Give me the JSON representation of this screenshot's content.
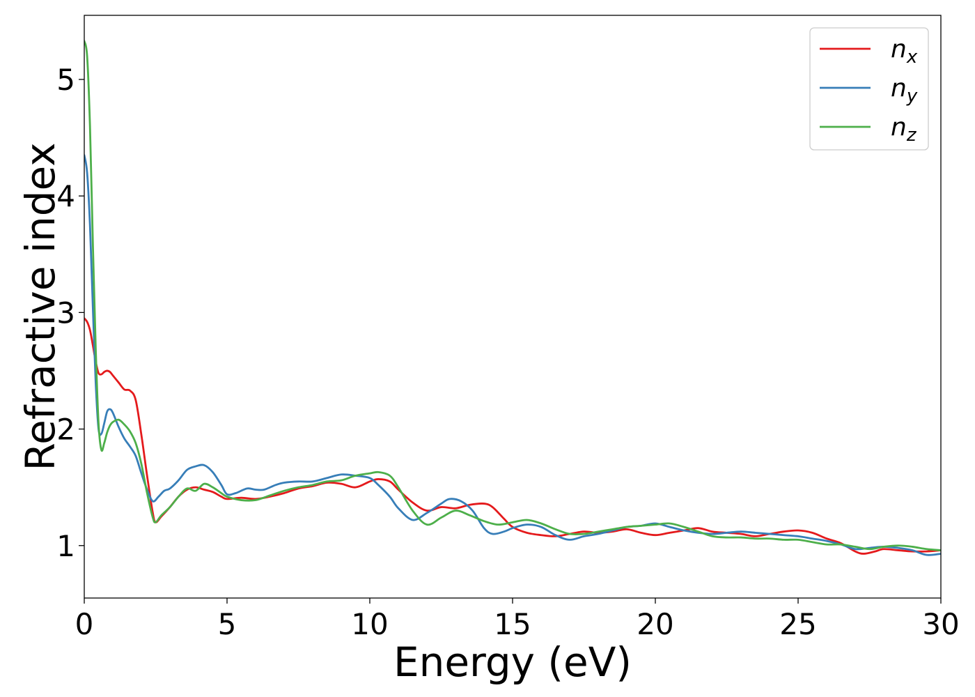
{
  "chart_data": {
    "type": "line",
    "title": "",
    "xlabel": "Energy (eV)",
    "ylabel": "Refractive index",
    "xlim": [
      0,
      30
    ],
    "ylim": [
      0.55,
      5.55
    ],
    "xticks": [
      0,
      5,
      10,
      15,
      20,
      25,
      30
    ],
    "yticks": [
      1,
      2,
      3,
      4,
      5
    ],
    "grid": false,
    "legend_position": "top-right",
    "series": [
      {
        "name": "n",
        "subscript": "x",
        "color": "#e41a1c",
        "x": [
          0,
          0.1,
          0.2,
          0.3,
          0.4,
          0.5,
          0.6,
          0.7,
          0.8,
          0.9,
          1.0,
          1.2,
          1.4,
          1.6,
          1.8,
          2.0,
          2.2,
          2.4,
          2.5,
          2.7,
          3.0,
          3.3,
          3.6,
          3.9,
          4.2,
          4.5,
          4.8,
          5.0,
          5.5,
          6.0,
          6.5,
          7.0,
          7.5,
          8.0,
          8.5,
          9.0,
          9.5,
          10.0,
          10.3,
          10.7,
          11.0,
          11.5,
          12.0,
          12.5,
          13.0,
          13.5,
          14.0,
          14.3,
          14.7,
          15.0,
          15.5,
          16.0,
          16.5,
          17.0,
          17.5,
          18.0,
          18.5,
          19.0,
          19.5,
          20.0,
          20.5,
          21.0,
          21.5,
          22.0,
          22.5,
          23.0,
          23.5,
          24.0,
          24.5,
          25.0,
          25.5,
          26.0,
          26.5,
          27.0,
          27.3,
          27.7,
          28.0,
          28.5,
          29.0,
          29.5,
          30.0
        ],
        "y": [
          2.95,
          2.92,
          2.85,
          2.72,
          2.58,
          2.48,
          2.47,
          2.49,
          2.5,
          2.49,
          2.46,
          2.4,
          2.34,
          2.33,
          2.25,
          1.95,
          1.6,
          1.28,
          1.2,
          1.25,
          1.33,
          1.42,
          1.48,
          1.5,
          1.48,
          1.46,
          1.42,
          1.4,
          1.41,
          1.4,
          1.42,
          1.45,
          1.49,
          1.51,
          1.54,
          1.53,
          1.5,
          1.55,
          1.57,
          1.55,
          1.48,
          1.37,
          1.3,
          1.33,
          1.32,
          1.35,
          1.36,
          1.33,
          1.23,
          1.16,
          1.11,
          1.09,
          1.08,
          1.1,
          1.12,
          1.11,
          1.12,
          1.14,
          1.11,
          1.09,
          1.11,
          1.13,
          1.15,
          1.12,
          1.11,
          1.1,
          1.08,
          1.1,
          1.12,
          1.13,
          1.11,
          1.06,
          1.02,
          0.95,
          0.93,
          0.95,
          0.97,
          0.96,
          0.95,
          0.95,
          0.96
        ]
      },
      {
        "name": "n",
        "subscript": "y",
        "color": "#377eb8",
        "x": [
          0,
          0.1,
          0.2,
          0.3,
          0.4,
          0.5,
          0.6,
          0.7,
          0.8,
          0.9,
          1.0,
          1.2,
          1.4,
          1.6,
          1.8,
          2.0,
          2.2,
          2.4,
          2.6,
          2.8,
          3.0,
          3.3,
          3.6,
          3.9,
          4.2,
          4.5,
          4.8,
          5.0,
          5.3,
          5.7,
          6.0,
          6.3,
          6.7,
          7.0,
          7.5,
          8.0,
          8.5,
          9.0,
          9.5,
          10.0,
          10.3,
          10.7,
          11.0,
          11.5,
          12.0,
          12.5,
          12.8,
          13.2,
          13.6,
          14.0,
          14.3,
          14.7,
          15.0,
          15.5,
          16.0,
          16.5,
          17.0,
          17.5,
          18.0,
          18.5,
          19.0,
          19.5,
          20.0,
          20.5,
          21.0,
          21.5,
          22.0,
          22.5,
          23.0,
          23.5,
          24.0,
          24.5,
          25.0,
          25.5,
          26.0,
          26.5,
          27.0,
          27.5,
          28.0,
          28.5,
          29.0,
          29.5,
          30.0
        ],
        "y": [
          4.35,
          4.2,
          3.75,
          3.05,
          2.4,
          2.0,
          1.96,
          2.05,
          2.15,
          2.17,
          2.14,
          2.02,
          1.92,
          1.85,
          1.77,
          1.62,
          1.48,
          1.38,
          1.42,
          1.47,
          1.49,
          1.56,
          1.65,
          1.68,
          1.69,
          1.63,
          1.52,
          1.44,
          1.45,
          1.49,
          1.48,
          1.48,
          1.52,
          1.54,
          1.55,
          1.55,
          1.58,
          1.61,
          1.6,
          1.58,
          1.52,
          1.42,
          1.32,
          1.22,
          1.28,
          1.36,
          1.4,
          1.38,
          1.3,
          1.15,
          1.1,
          1.12,
          1.15,
          1.18,
          1.16,
          1.09,
          1.05,
          1.08,
          1.1,
          1.13,
          1.16,
          1.17,
          1.19,
          1.16,
          1.13,
          1.11,
          1.1,
          1.11,
          1.12,
          1.11,
          1.1,
          1.09,
          1.08,
          1.06,
          1.04,
          1.01,
          0.97,
          0.98,
          0.99,
          0.98,
          0.96,
          0.92,
          0.93
        ]
      },
      {
        "name": "n",
        "subscript": "z",
        "color": "#4daf4a",
        "x": [
          0,
          0.1,
          0.2,
          0.3,
          0.4,
          0.5,
          0.6,
          0.7,
          0.8,
          0.9,
          1.0,
          1.2,
          1.4,
          1.6,
          1.8,
          2.0,
          2.2,
          2.4,
          2.5,
          2.7,
          3.0,
          3.3,
          3.6,
          3.9,
          4.2,
          4.5,
          4.8,
          5.0,
          5.5,
          6.0,
          6.5,
          7.0,
          7.5,
          8.0,
          8.5,
          9.0,
          9.5,
          10.0,
          10.3,
          10.7,
          11.0,
          11.5,
          12.0,
          12.5,
          13.0,
          13.5,
          14.0,
          14.5,
          15.0,
          15.5,
          16.0,
          16.5,
          17.0,
          17.5,
          18.0,
          18.5,
          19.0,
          19.5,
          20.0,
          20.5,
          21.0,
          21.5,
          22.0,
          22.5,
          23.0,
          23.5,
          24.0,
          24.5,
          25.0,
          25.5,
          26.0,
          26.5,
          27.0,
          27.5,
          28.0,
          28.5,
          29.0,
          29.5,
          30.0
        ],
        "y": [
          5.33,
          5.2,
          4.6,
          3.6,
          2.7,
          2.05,
          1.82,
          1.88,
          1.97,
          2.03,
          2.06,
          2.08,
          2.04,
          1.98,
          1.88,
          1.7,
          1.45,
          1.24,
          1.2,
          1.26,
          1.33,
          1.42,
          1.49,
          1.47,
          1.53,
          1.5,
          1.45,
          1.42,
          1.39,
          1.39,
          1.43,
          1.47,
          1.5,
          1.52,
          1.55,
          1.56,
          1.6,
          1.62,
          1.63,
          1.6,
          1.5,
          1.3,
          1.18,
          1.24,
          1.3,
          1.26,
          1.21,
          1.18,
          1.2,
          1.22,
          1.19,
          1.14,
          1.1,
          1.1,
          1.12,
          1.14,
          1.16,
          1.17,
          1.18,
          1.19,
          1.16,
          1.12,
          1.08,
          1.07,
          1.07,
          1.06,
          1.06,
          1.05,
          1.05,
          1.03,
          1.01,
          1.01,
          0.99,
          0.97,
          0.99,
          1.0,
          0.99,
          0.97,
          0.96
        ]
      }
    ]
  }
}
